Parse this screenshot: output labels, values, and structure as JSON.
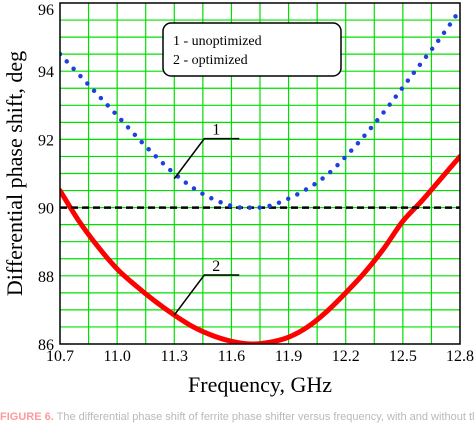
{
  "chart_data": {
    "type": "line",
    "xlabel": "Frequency, GHz",
    "ylabel": "Differential phase shift, deg",
    "xlim": [
      10.7,
      12.8
    ],
    "ylim": [
      86,
      96
    ],
    "x_ticks": [
      "10.7",
      "11.0",
      "11.3",
      "11.6",
      "11.9",
      "12.2",
      "12.5",
      "12.8"
    ],
    "y_ticks": [
      "86",
      "88",
      "90",
      "92",
      "94",
      "96"
    ],
    "x_tick_values": [
      10.7,
      11.0,
      11.3,
      11.6,
      11.9,
      12.2,
      12.5,
      12.8
    ],
    "y_tick_values": [
      86,
      88,
      90,
      92,
      94,
      96
    ],
    "grid": true,
    "grid_color": "#00e000",
    "legend": {
      "placement": "top-center",
      "entries": [
        "1 - unoptimized",
        "2 - optimized"
      ]
    },
    "series": [
      {
        "name": "1",
        "style": "dotted",
        "color": "#1f3fe0",
        "x": [
          10.7,
          10.85,
          11.0,
          11.15,
          11.3,
          11.45,
          11.6,
          11.7,
          11.8,
          11.95,
          12.1,
          12.25,
          12.4,
          12.55,
          12.7,
          12.8
        ],
        "values": [
          94.5,
          93.6,
          92.7,
          91.8,
          91.0,
          90.4,
          90.05,
          90.0,
          90.05,
          90.4,
          90.95,
          91.8,
          92.8,
          93.9,
          95.0,
          95.8
        ]
      },
      {
        "name": "2",
        "style": "solid",
        "color": "#ff0000",
        "x": [
          10.7,
          10.8,
          10.9,
          11.0,
          11.1,
          11.2,
          11.3,
          11.4,
          11.5,
          11.6,
          11.7,
          11.8,
          11.9,
          12.0,
          12.1,
          12.2,
          12.3,
          12.4,
          12.5,
          12.6,
          12.7,
          12.8
        ],
        "values": [
          90.5,
          89.6,
          88.85,
          88.2,
          87.7,
          87.25,
          86.85,
          86.5,
          86.25,
          86.08,
          86.0,
          86.05,
          86.2,
          86.5,
          86.95,
          87.5,
          88.1,
          88.8,
          89.6,
          90.2,
          90.85,
          91.5
        ]
      },
      {
        "name": "",
        "style": "dashed",
        "color": "#000000",
        "x": [
          10.7,
          12.8
        ],
        "values": [
          90,
          90
        ]
      }
    ],
    "annotations": [
      {
        "text": "1",
        "x": 11.3,
        "y": 90.85
      },
      {
        "text": "2",
        "x": 11.3,
        "y": 86.85
      }
    ]
  },
  "caption": {
    "figure_label": "FIGURE 6.",
    "text": "The differential phase shift of ferrite phase shifter versus frequency, with and without the"
  }
}
